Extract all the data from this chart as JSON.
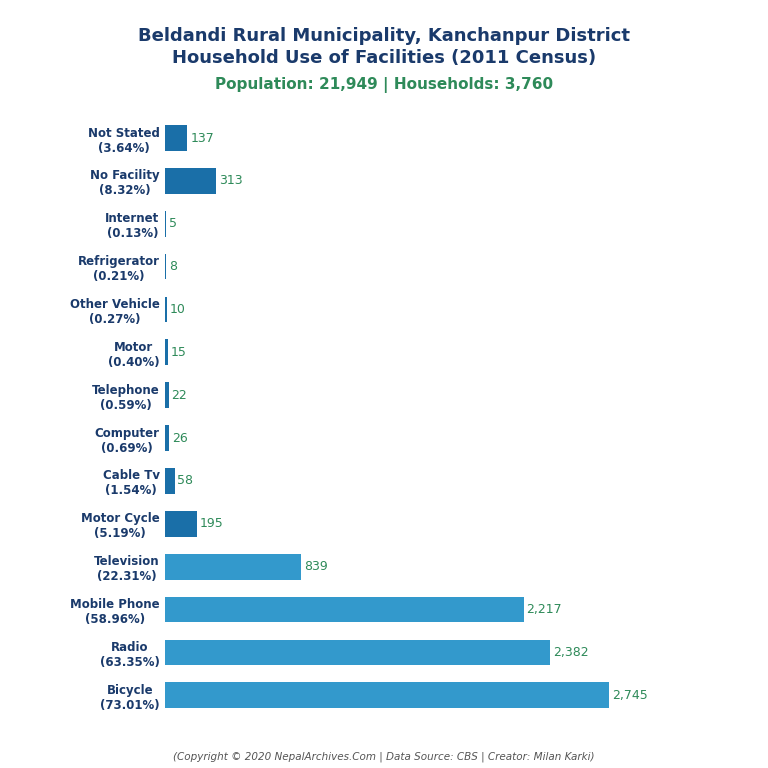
{
  "title_line1": "Beldandi Rural Municipality, Kanchanpur District",
  "title_line2": "Household Use of Facilities (2011 Census)",
  "subtitle": "Population: 21,949 | Households: 3,760",
  "footer": "(Copyright © 2020 NepalArchives.Com | Data Source: CBS | Creator: Milan Karki)",
  "categories": [
    "Not Stated\n(3.64%)",
    "No Facility\n(8.32%)",
    "Internet\n(0.13%)",
    "Refrigerator\n(0.21%)",
    "Other Vehicle\n(0.27%)",
    "Motor\n(0.40%)",
    "Telephone\n(0.59%)",
    "Computer\n(0.69%)",
    "Cable Tv\n(1.54%)",
    "Motor Cycle\n(5.19%)",
    "Television\n(22.31%)",
    "Mobile Phone\n(58.96%)",
    "Radio\n(63.35%)",
    "Bicycle\n(73.01%)"
  ],
  "values": [
    137,
    313,
    5,
    8,
    10,
    15,
    22,
    26,
    58,
    195,
    839,
    2217,
    2382,
    2745
  ],
  "bar_color_dark": "#1a6fa8",
  "bar_color_light": "#3399cc",
  "value_color": "#2e8a59",
  "title_color": "#1a3a6b",
  "subtitle_color": "#2e8a59",
  "footer_color": "#555555",
  "background_color": "#ffffff",
  "xlim": 3300,
  "title_fontsize": 13,
  "subtitle_fontsize": 11,
  "bar_label_fontsize": 9,
  "ylabel_fontsize": 8.5
}
